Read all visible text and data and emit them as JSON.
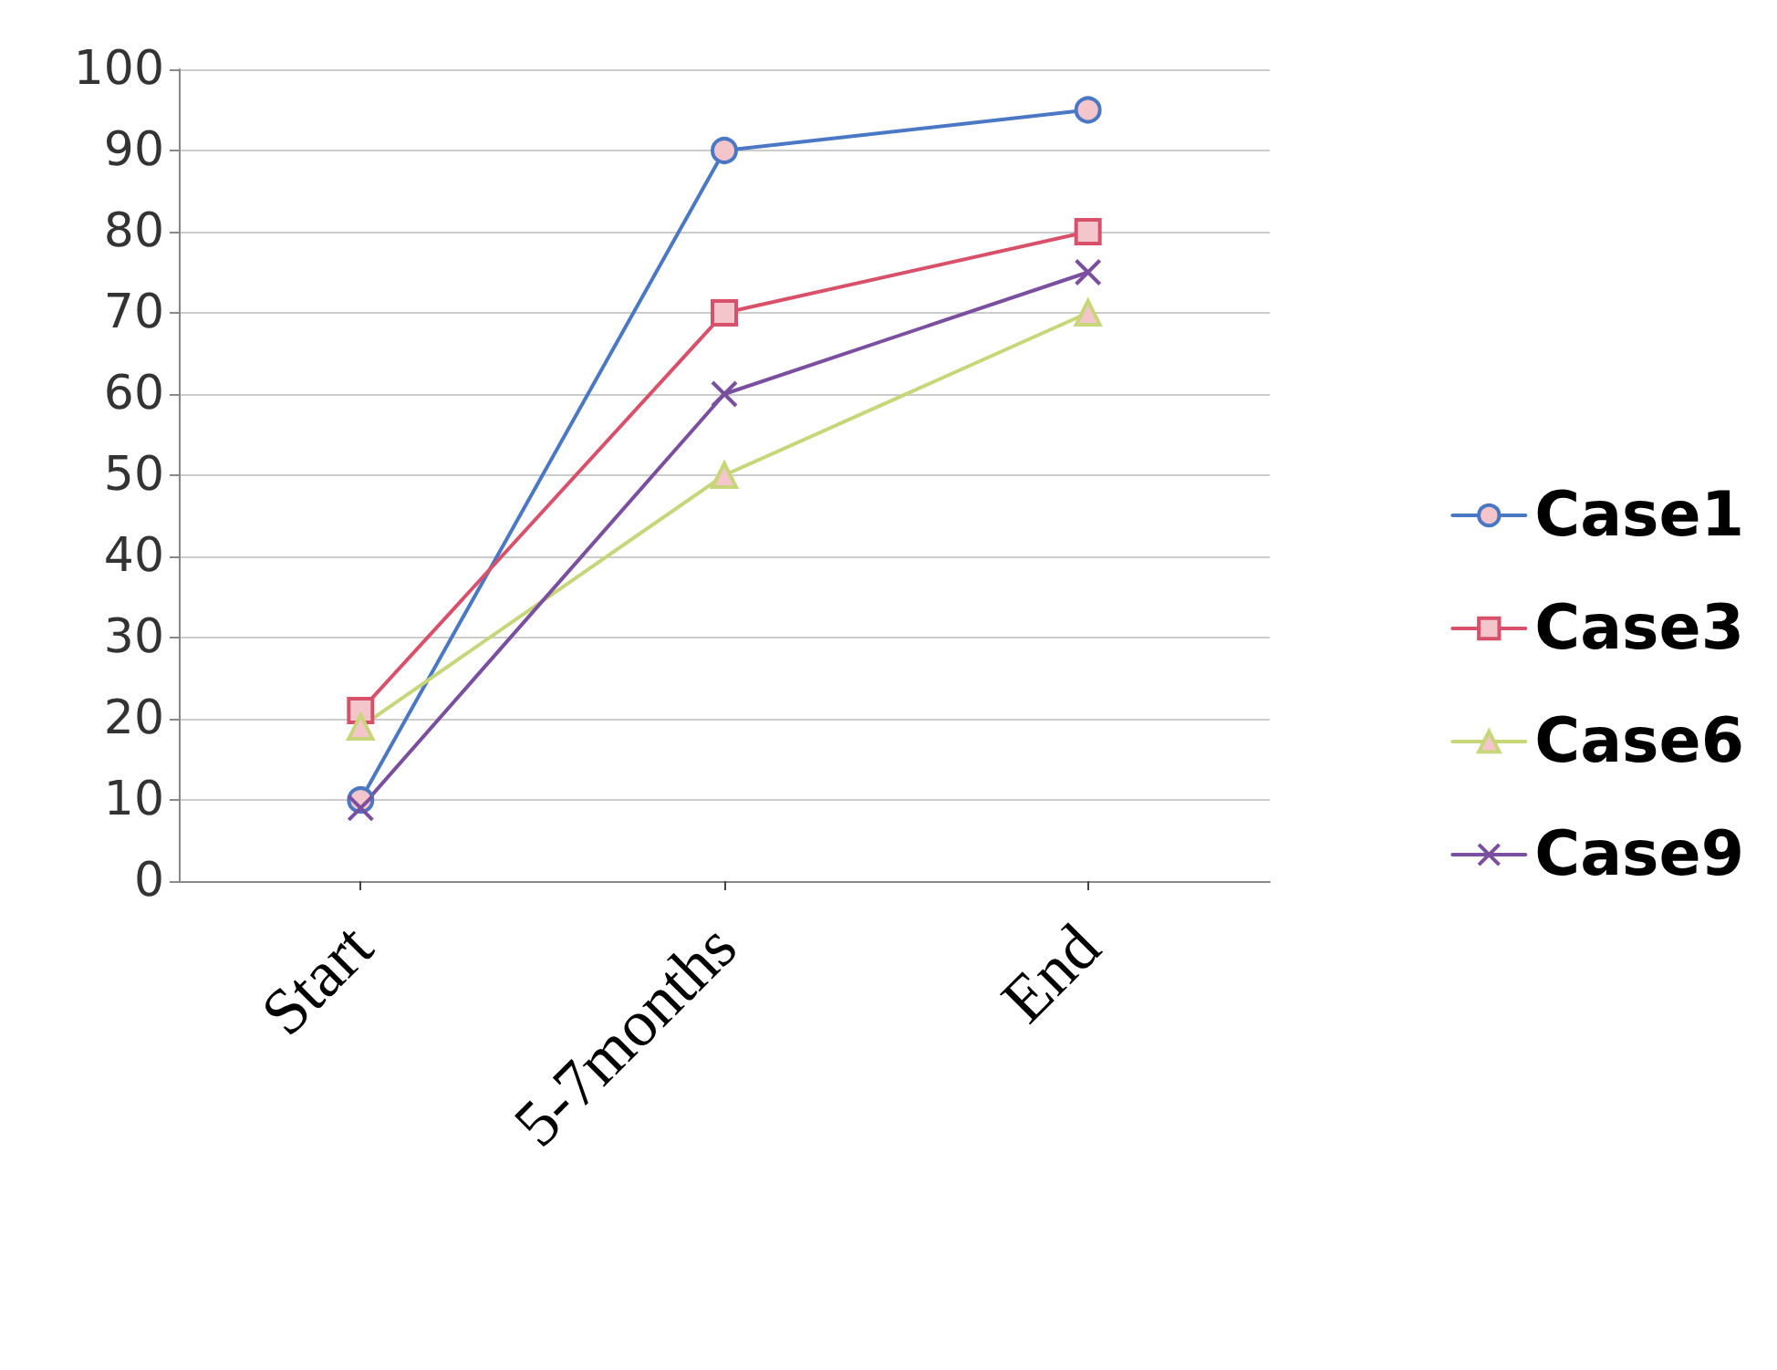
{
  "chart_data": {
    "type": "line",
    "categories": [
      "Start",
      "5-7months",
      "End"
    ],
    "series": [
      {
        "name": "Case1",
        "color": "#4a78c4",
        "marker": "circle",
        "values": [
          10,
          90,
          95
        ]
      },
      {
        "name": "Case3",
        "color": "#d9506a",
        "marker": "square",
        "values": [
          21,
          70,
          80
        ]
      },
      {
        "name": "Case6",
        "color": "#c8d67a",
        "marker": "triangle",
        "values": [
          19,
          50,
          70
        ]
      },
      {
        "name": "Case9",
        "color": "#7a4fa0",
        "marker": "cross",
        "values": [
          9,
          60,
          75
        ]
      }
    ],
    "ylim": [
      0,
      100
    ],
    "yticks": [
      0,
      10,
      20,
      30,
      40,
      50,
      60,
      70,
      80,
      90,
      100
    ],
    "grid": "y",
    "legend": "right"
  }
}
